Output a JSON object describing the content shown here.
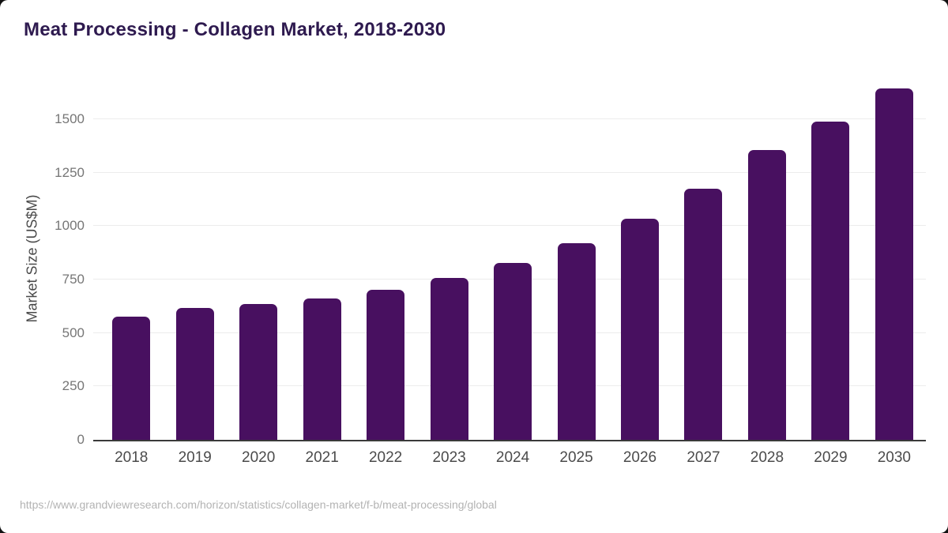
{
  "page": {
    "title": "Meat Processing - Collagen Market, 2018-2030",
    "source_url": "https://www.grandviewresearch.com/horizon/statistics/collagen-market/f-b/meat-processing/global"
  },
  "chart_data": {
    "type": "bar",
    "title": "Meat Processing - Collagen Market, 2018-2030",
    "xlabel": "",
    "ylabel": "Market Size (US$M)",
    "unit": "US$M",
    "categories": [
      "2018",
      "2019",
      "2020",
      "2021",
      "2022",
      "2023",
      "2024",
      "2025",
      "2026",
      "2027",
      "2028",
      "2029",
      "2030"
    ],
    "values": [
      575,
      615,
      635,
      662,
      700,
      758,
      828,
      918,
      1035,
      1175,
      1355,
      1490,
      1643
    ],
    "ylim": [
      0,
      1680
    ],
    "yticks": [
      0,
      250,
      500,
      750,
      1000,
      1250,
      1500
    ],
    "grid": true,
    "legend": false,
    "colors": {
      "bar": "#481060",
      "title": "#2e1a4f",
      "axis_line": "#3a3a3a",
      "gridline": "#ececec",
      "ytick_label": "#767676",
      "xtick_label": "#4b4b4b",
      "ylabel_text": "#4a4a4a",
      "source_text": "#b3b3b3"
    }
  }
}
